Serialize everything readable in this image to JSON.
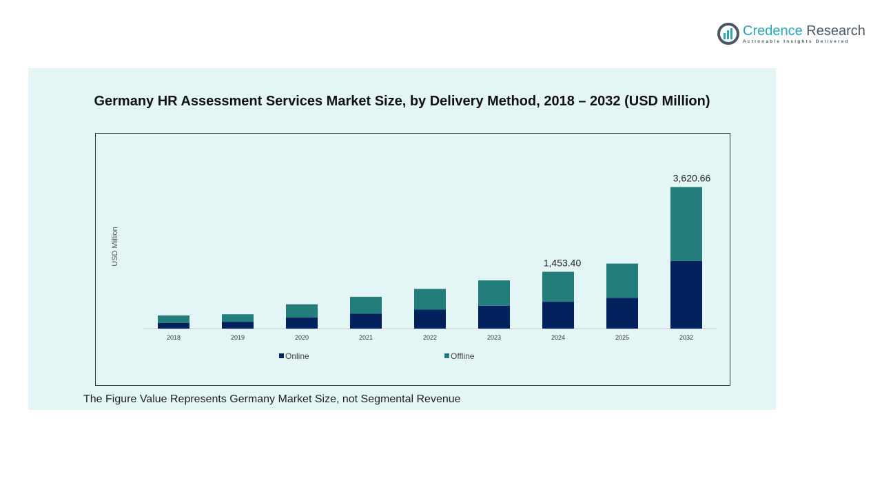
{
  "logo": {
    "brand_part1": "Credence",
    "brand_part2": "Research",
    "tagline": "Actionable Insights Delivered"
  },
  "note": "The Figure Value Represents Germany Market Size, not Segmental Revenue",
  "chart_data": {
    "type": "bar",
    "stacked": true,
    "title": "Germany HR Assessment Services Market Size, by Delivery Method, 2018 – 2032 (USD Million)",
    "ylabel": "USD Million",
    "xlabel": "",
    "categories": [
      "2018",
      "2019",
      "2020",
      "2021",
      "2022",
      "2023",
      "2024",
      "2025",
      "2032"
    ],
    "series": [
      {
        "name": "Online",
        "color": "#03215d",
        "values": [
          146,
          174,
          283,
          384,
          484,
          585,
          686,
          786,
          1731
        ]
      },
      {
        "name": "Offline",
        "color": "#237d7a",
        "values": [
          192,
          192,
          339,
          429,
          531,
          649,
          767.4,
          878,
          1889.66
        ]
      }
    ],
    "data_labels": {
      "2024": "1,453.40",
      "2032": "3,620.66"
    },
    "ylim": [
      0,
      3700
    ],
    "grid": false,
    "legend": "bottom"
  }
}
